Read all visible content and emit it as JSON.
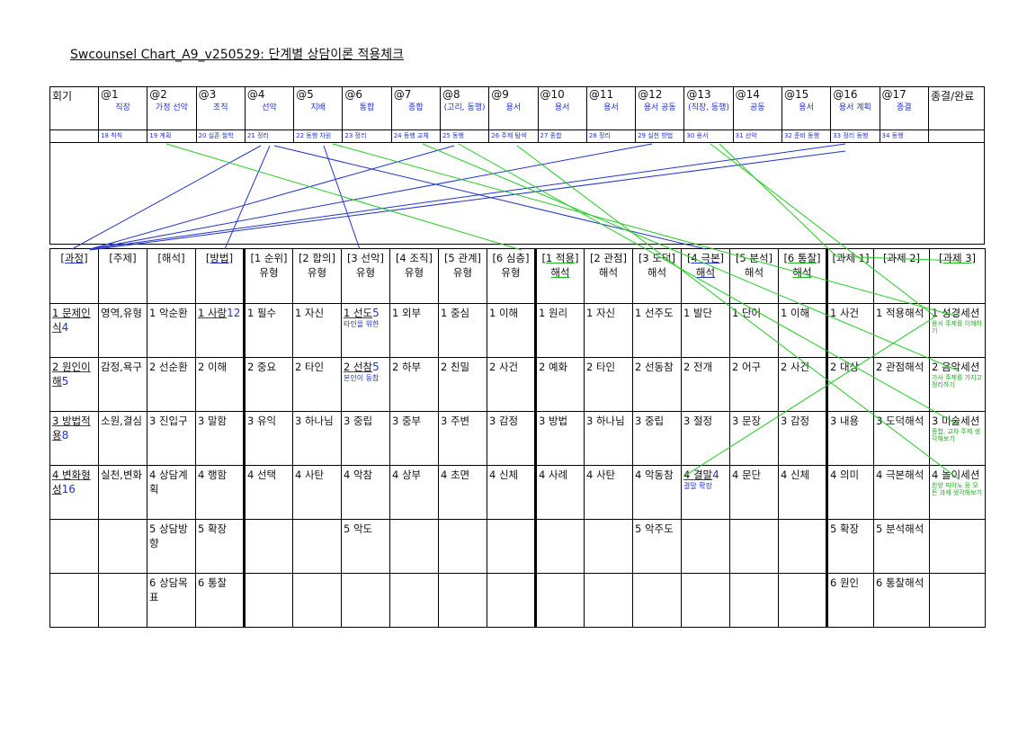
{
  "title": "Swcounsel Chart_A9_v250529: 단계별 상담이론 적용체크",
  "top": {
    "label": "회기",
    "sessions": [
      {
        "h": "@1",
        "note": "직장",
        "bottom": "18 칙칙"
      },
      {
        "h": "@2",
        "note": "가정 선악",
        "bottom": "19 계획"
      },
      {
        "h": "@3",
        "note": "조직",
        "bottom": "20 실존 철학"
      },
      {
        "h": "@4",
        "note": "선악",
        "bottom": "21 정리"
      },
      {
        "h": "@5",
        "note": "지배",
        "bottom": "22 동행 차원"
      },
      {
        "h": "@6",
        "note": "통합",
        "bottom": "23 정리"
      },
      {
        "h": "@7",
        "note": "종합",
        "bottom": "24 동행 교체"
      },
      {
        "h": "@8",
        "note": "(고리, 동행)",
        "bottom": "25 동행"
      },
      {
        "h": "@9",
        "note": "용서",
        "bottom": "26 주제 탐색"
      },
      {
        "h": "@10",
        "note": "용서",
        "bottom": "27 종합"
      },
      {
        "h": "@11",
        "note": "용서",
        "bottom": "28 정리"
      },
      {
        "h": "@12",
        "note": "용서 공동",
        "bottom": "29 실천 방법"
      },
      {
        "h": "@13",
        "note": "(직장, 동행)",
        "bottom": "30 용서"
      },
      {
        "h": "@14",
        "note": "공동",
        "bottom": "31 선악"
      },
      {
        "h": "@15",
        "note": "용서",
        "bottom": "32 준비 동행"
      },
      {
        "h": "@16",
        "note": "용서 계획",
        "bottom": "33 정리 동행"
      },
      {
        "h": "@17",
        "note": "종결",
        "bottom": "34 동행"
      }
    ],
    "end": "종결/완료"
  },
  "header": [
    "[과정]",
    "[주제]",
    "[해석]",
    "[방법]",
    "[1 순위]\n유형",
    "[2 합의]\n유형",
    "[3 선악]\n유형",
    "[4 조직]\n유형",
    "[5 관계]\n유형",
    "[6 심층]\n유형",
    "[1 적용]\n해석",
    "[2 관점]\n해석",
    "[3 도덕]\n해석",
    "[4 극본]\n해석",
    "[5 분석]\n해석",
    "[6 통찰]\n해석",
    "[과제 1]",
    "[과제 2]",
    "[과제 3]"
  ],
  "rows": [
    [
      "1 문제인식",
      "영역,유형",
      "1 악순환",
      "1 사랑",
      "1 필수",
      "1 자신",
      "1 선도",
      "1 외부",
      "1 중심",
      "1 이해",
      "1 원리",
      "1 자신",
      "1 선주도",
      "1 발단",
      "1 단어",
      "1 이해",
      "1 사건",
      "1 적용해석",
      "1 성경세션"
    ],
    [
      "2 원인이해",
      "감정,욕구",
      "2 선순환",
      "2 이해",
      "2 중요",
      "2 타인",
      "2 선참",
      "2 하부",
      "2 친밀",
      "2 사건",
      "2 예화",
      "2 타인",
      "2 선동참",
      "2 전개",
      "2 어구",
      "2 사건",
      "2 대상",
      "2 관점해석",
      "2 음악세션"
    ],
    [
      "3 방법적용",
      "소원,결심",
      "3 진입구",
      "3 말함",
      "3 유익",
      "3 하나님",
      "3 중립",
      "3 중부",
      "3 주변",
      "3 감정",
      "3 방법",
      "3 하나님",
      "3 중립",
      "3 절정",
      "3 문장",
      "3 감정",
      "3 내용",
      "3 도덕해석",
      "3 미술세션"
    ],
    [
      "4 변화형성",
      "실천,변화",
      "4 상담계획",
      "4 행함",
      "4 선택",
      "4 사탄",
      "4 악참",
      "4 상부",
      "4 초면",
      "4 신체",
      "4 사례",
      "4 사탄",
      "4 악동참",
      "4 결말",
      "4 문단",
      "4 신체",
      "4 의미",
      "4 극본해석",
      "4 놀이세션"
    ],
    [
      "",
      "",
      "5 상담방향",
      "5 확장",
      "",
      "",
      "5 악도",
      "",
      "",
      "",
      "",
      "",
      "5 악주도",
      "",
      "",
      "",
      "5 확장",
      "5 분석해석",
      ""
    ],
    [
      "",
      "",
      "6 상담목표",
      "6 통찰",
      "",
      "",
      "",
      "",
      "",
      "",
      "",
      "",
      "",
      "",
      "",
      "",
      "6 원인",
      "6 통찰해석",
      ""
    ]
  ],
  "annotations": {
    "r1c0": "4",
    "r2c0": "5",
    "r3c0": "8",
    "r4c0": "16",
    "r1c3": "12",
    "r1c6": "5",
    "r1c6note": "타인을 위한",
    "r2c6": "5",
    "r2c6note": "본인이 동참",
    "r4c13": "4",
    "r4c13note": "결말 확장",
    "r1c18note": "용서 주제를 이해하기",
    "r2c18note": "가사 주제를 가지고 정리하기",
    "r3c18note": "종합, 교차 주제 생각해보기",
    "r4c18note": "찬양 피아노 등 모든 과제 생각해보기"
  },
  "colors": {
    "ink": "#111111",
    "blue": "#2233cc",
    "green": "#22cc22"
  }
}
